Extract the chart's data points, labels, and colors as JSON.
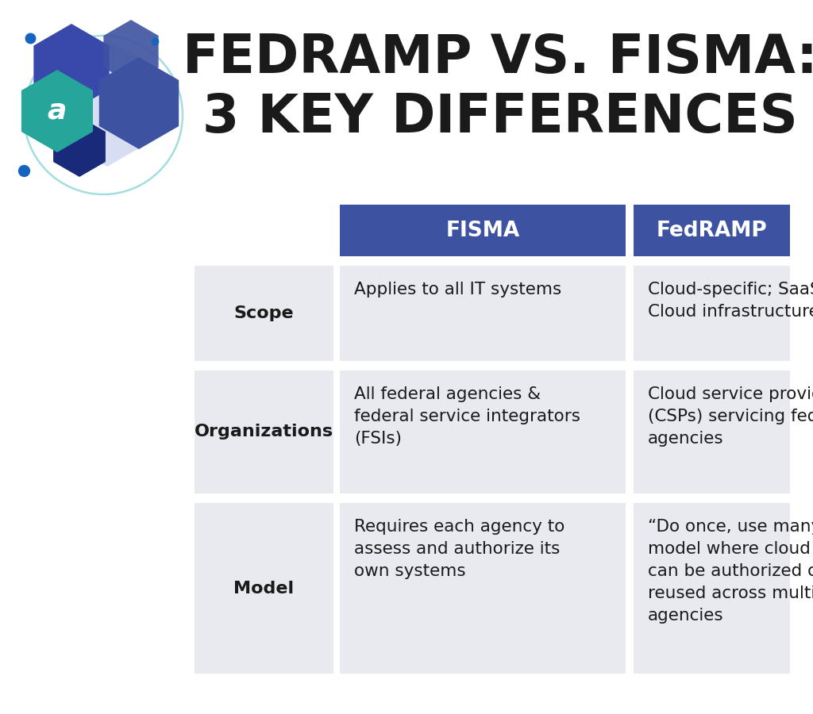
{
  "title_line1": "FEDRAMP VS. FISMA:",
  "title_line2": "3 KEY DIFFERENCES",
  "title_color": "#1a1a1a",
  "title_fontsize": 48,
  "bg_color": "#ffffff",
  "header_bg_color": "#3d52a0",
  "header_text_color": "#ffffff",
  "header_fontsize": 19,
  "cell_bg_color": "#e8eaf0",
  "cell_text_color": "#1a1a1a",
  "cell_fontsize": 15.5,
  "row_label_fontsize": 16,
  "headers": [
    "FISMA",
    "FedRAMP"
  ],
  "row_labels": [
    "Scope",
    "Organizations",
    "Model"
  ],
  "fisma_data": [
    "Applies to all IT systems",
    "All federal agencies &\nfederal service integrators\n(FSIs)",
    "Requires each agency to\nassess and authorize its\nown systems"
  ],
  "fedramp_data": [
    "Cloud-specific; SaaS &\nCloud infrastructure",
    "Cloud service providers\n(CSPs) servicing federal\nagencies",
    "“Do once, use many times”\nmodel where cloud services\ncan be authorized once &\nreused across multiple\nagencies"
  ],
  "hex_colors": {
    "teal": "#26a69a",
    "blue1": "#3949ab",
    "blue2": "#3d52a0",
    "blue3": "#2d3f9e",
    "dark_blue": "#1a2a7a",
    "light_blue_hex": "#b8c4e8",
    "dot_color": "#1565c0",
    "circle_color": "#7ecfd4"
  }
}
